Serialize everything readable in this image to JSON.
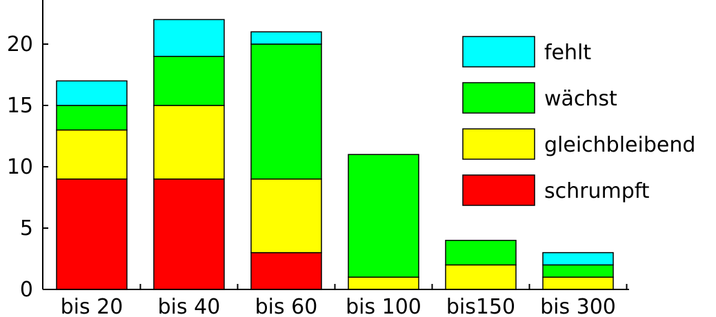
{
  "chart_data": {
    "type": "bar",
    "stacked": true,
    "categories": [
      "bis 20",
      "bis 40",
      "bis 60",
      "bis 100",
      "bis150",
      "bis 300"
    ],
    "series": [
      {
        "name": "schrumpft",
        "color": "#ff0000",
        "values": [
          9,
          9,
          3,
          0,
          0,
          0
        ]
      },
      {
        "name": "gleichbleibend",
        "color": "#ffff00",
        "values": [
          4,
          6,
          6,
          1,
          2,
          1
        ]
      },
      {
        "name": "wächst",
        "color": "#00ff00",
        "values": [
          2,
          4,
          11,
          10,
          2,
          1
        ]
      },
      {
        "name": "fehlt",
        "color": "#00ffff",
        "values": [
          2,
          3,
          1,
          0,
          0,
          1
        ]
      }
    ],
    "yticks": [
      "0",
      "5",
      "10",
      "15",
      "20"
    ],
    "ylim": [
      0,
      22.5
    ],
    "legend_placement": "top-right",
    "legend_order": [
      "fehlt",
      "wächst",
      "gleichbleibend",
      "schrumpft"
    ]
  }
}
